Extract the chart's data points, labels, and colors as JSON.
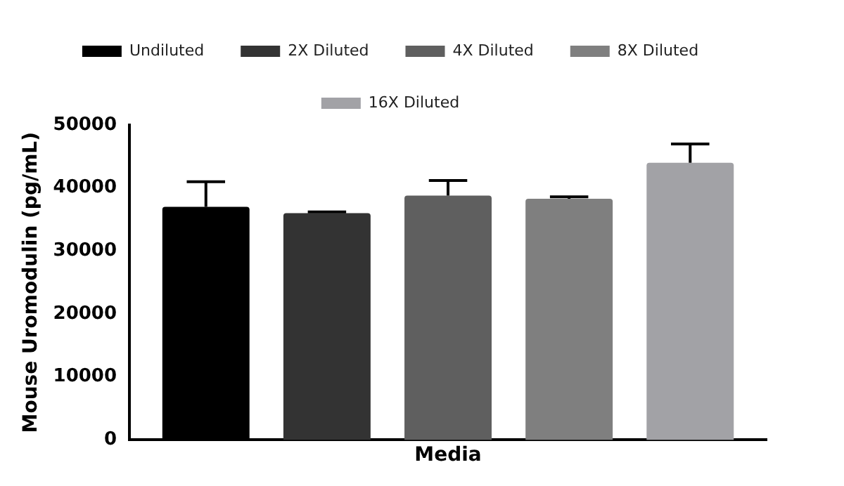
{
  "chart_data": {
    "type": "bar",
    "ylabel": "Mouse Uromodulin (pg/mL)",
    "categories": [
      "Media"
    ],
    "series": [
      {
        "name": "Undiluted",
        "color": "#000000",
        "values": [
          37000
        ],
        "errors": [
          [
            37000,
            41000
          ]
        ]
      },
      {
        "name": "2X Diluted",
        "color": "#333333",
        "values": [
          36000
        ],
        "errors": [
          [
            36000,
            36200
          ]
        ]
      },
      {
        "name": "4X Diluted",
        "color": "#5f5f5f",
        "values": [
          38800
        ],
        "errors": [
          [
            38800,
            41200
          ]
        ]
      },
      {
        "name": "8X Diluted",
        "color": "#7f7f7f",
        "values": [
          38300
        ],
        "errors": [
          [
            38300,
            38600
          ]
        ]
      },
      {
        "name": "16X Diluted",
        "color": "#a2a2a6",
        "values": [
          44000
        ],
        "errors": [
          [
            44000,
            47000
          ]
        ]
      }
    ],
    "ylim": [
      0,
      50000
    ],
    "yticks": [
      0,
      10000,
      20000,
      30000,
      40000,
      50000
    ],
    "grid": false,
    "legend": "top"
  }
}
